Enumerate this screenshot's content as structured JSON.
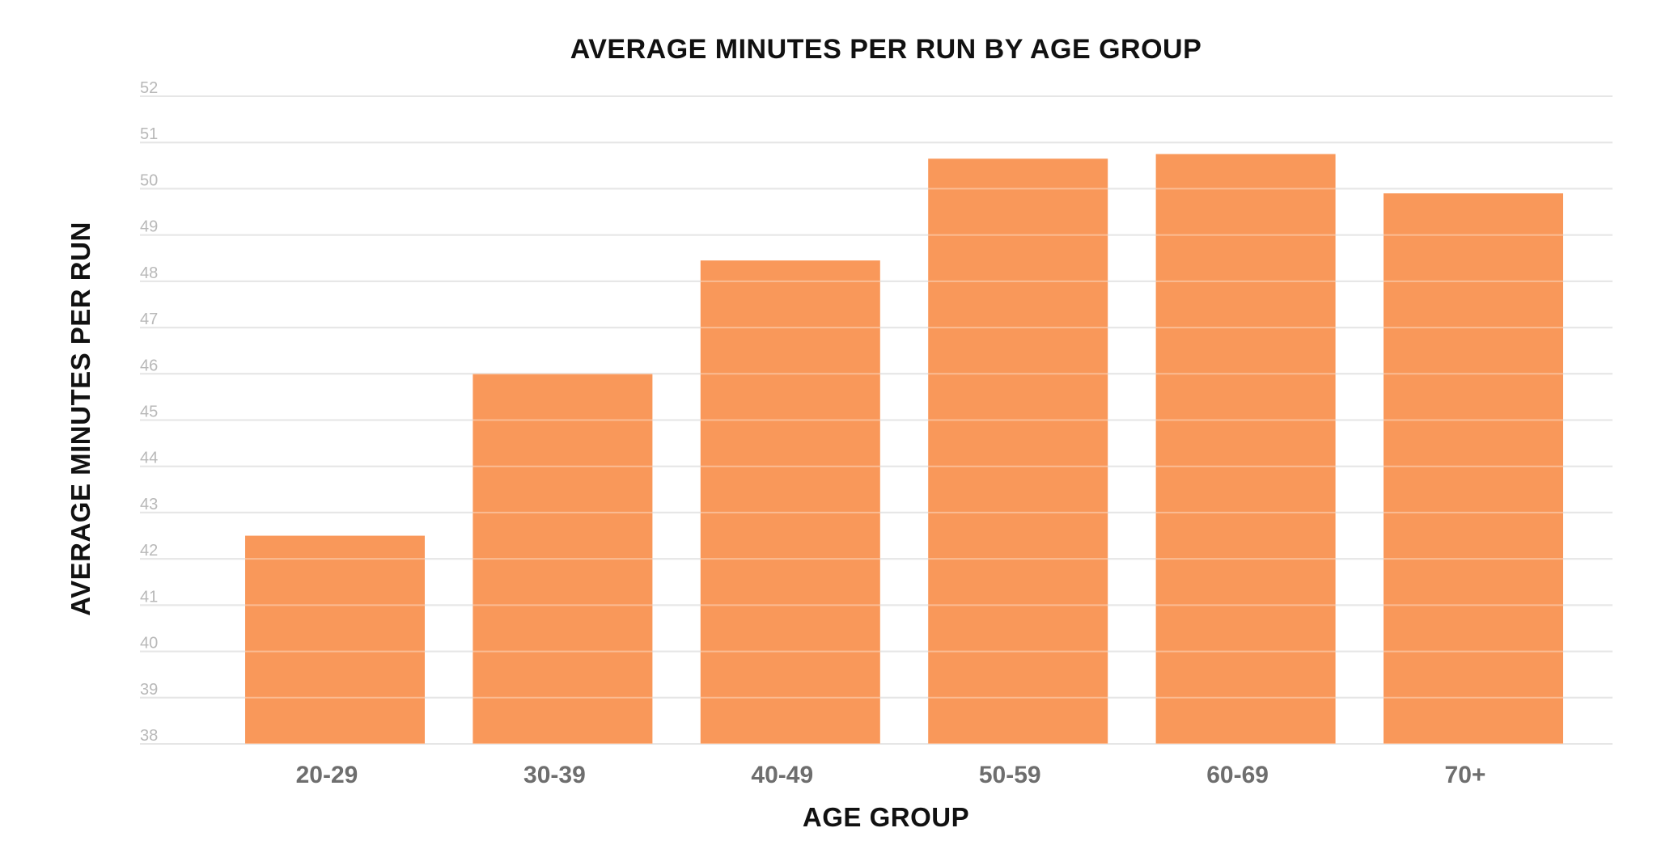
{
  "chart_data": {
    "type": "bar",
    "title": "AVERAGE MINUTES PER RUN BY AGE GROUP",
    "xlabel": "AGE GROUP",
    "ylabel": "AVERAGE MINUTES PER RUN",
    "categories": [
      "20-29",
      "30-39",
      "40-49",
      "50-59",
      "60-69",
      "70+"
    ],
    "values": [
      42.5,
      46.0,
      48.45,
      50.65,
      50.75,
      49.9
    ],
    "ylim": [
      38,
      52
    ],
    "yticks": [
      38,
      39,
      40,
      41,
      42,
      43,
      44,
      45,
      46,
      47,
      48,
      49,
      50,
      51,
      52
    ],
    "grid": true,
    "legend": "none",
    "bar_color": "#F9985A"
  }
}
